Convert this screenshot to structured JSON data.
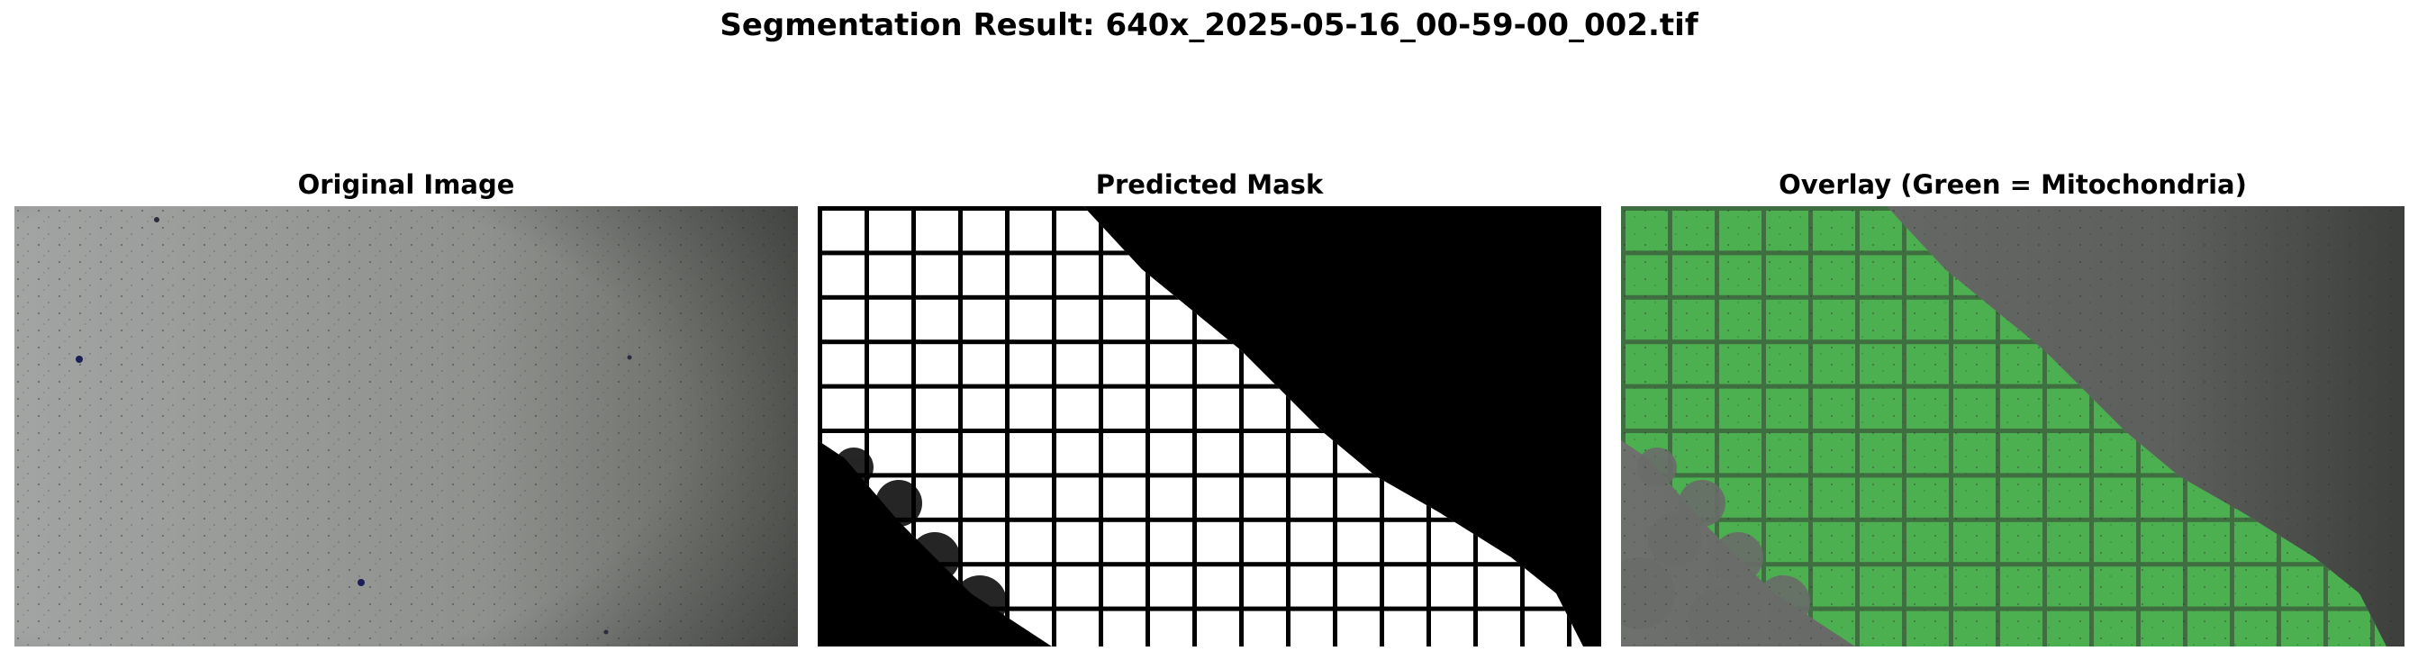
{
  "figure": {
    "title": "Segmentation Result: 640x_2025-05-16_00-59-00_002.tif"
  },
  "panels": [
    {
      "title": "Original Image",
      "icon": "microscope-photo-image"
    },
    {
      "title": "Predicted Mask",
      "icon": "binary-mask-image"
    },
    {
      "title": "Overlay (Green = Mitochondria)",
      "icon": "overlay-image"
    }
  ],
  "colors": {
    "mask_foreground": "#ffffff",
    "mask_background": "#000000",
    "overlay_green": "#4caf50",
    "photo_gray": "#9a9c9a"
  }
}
